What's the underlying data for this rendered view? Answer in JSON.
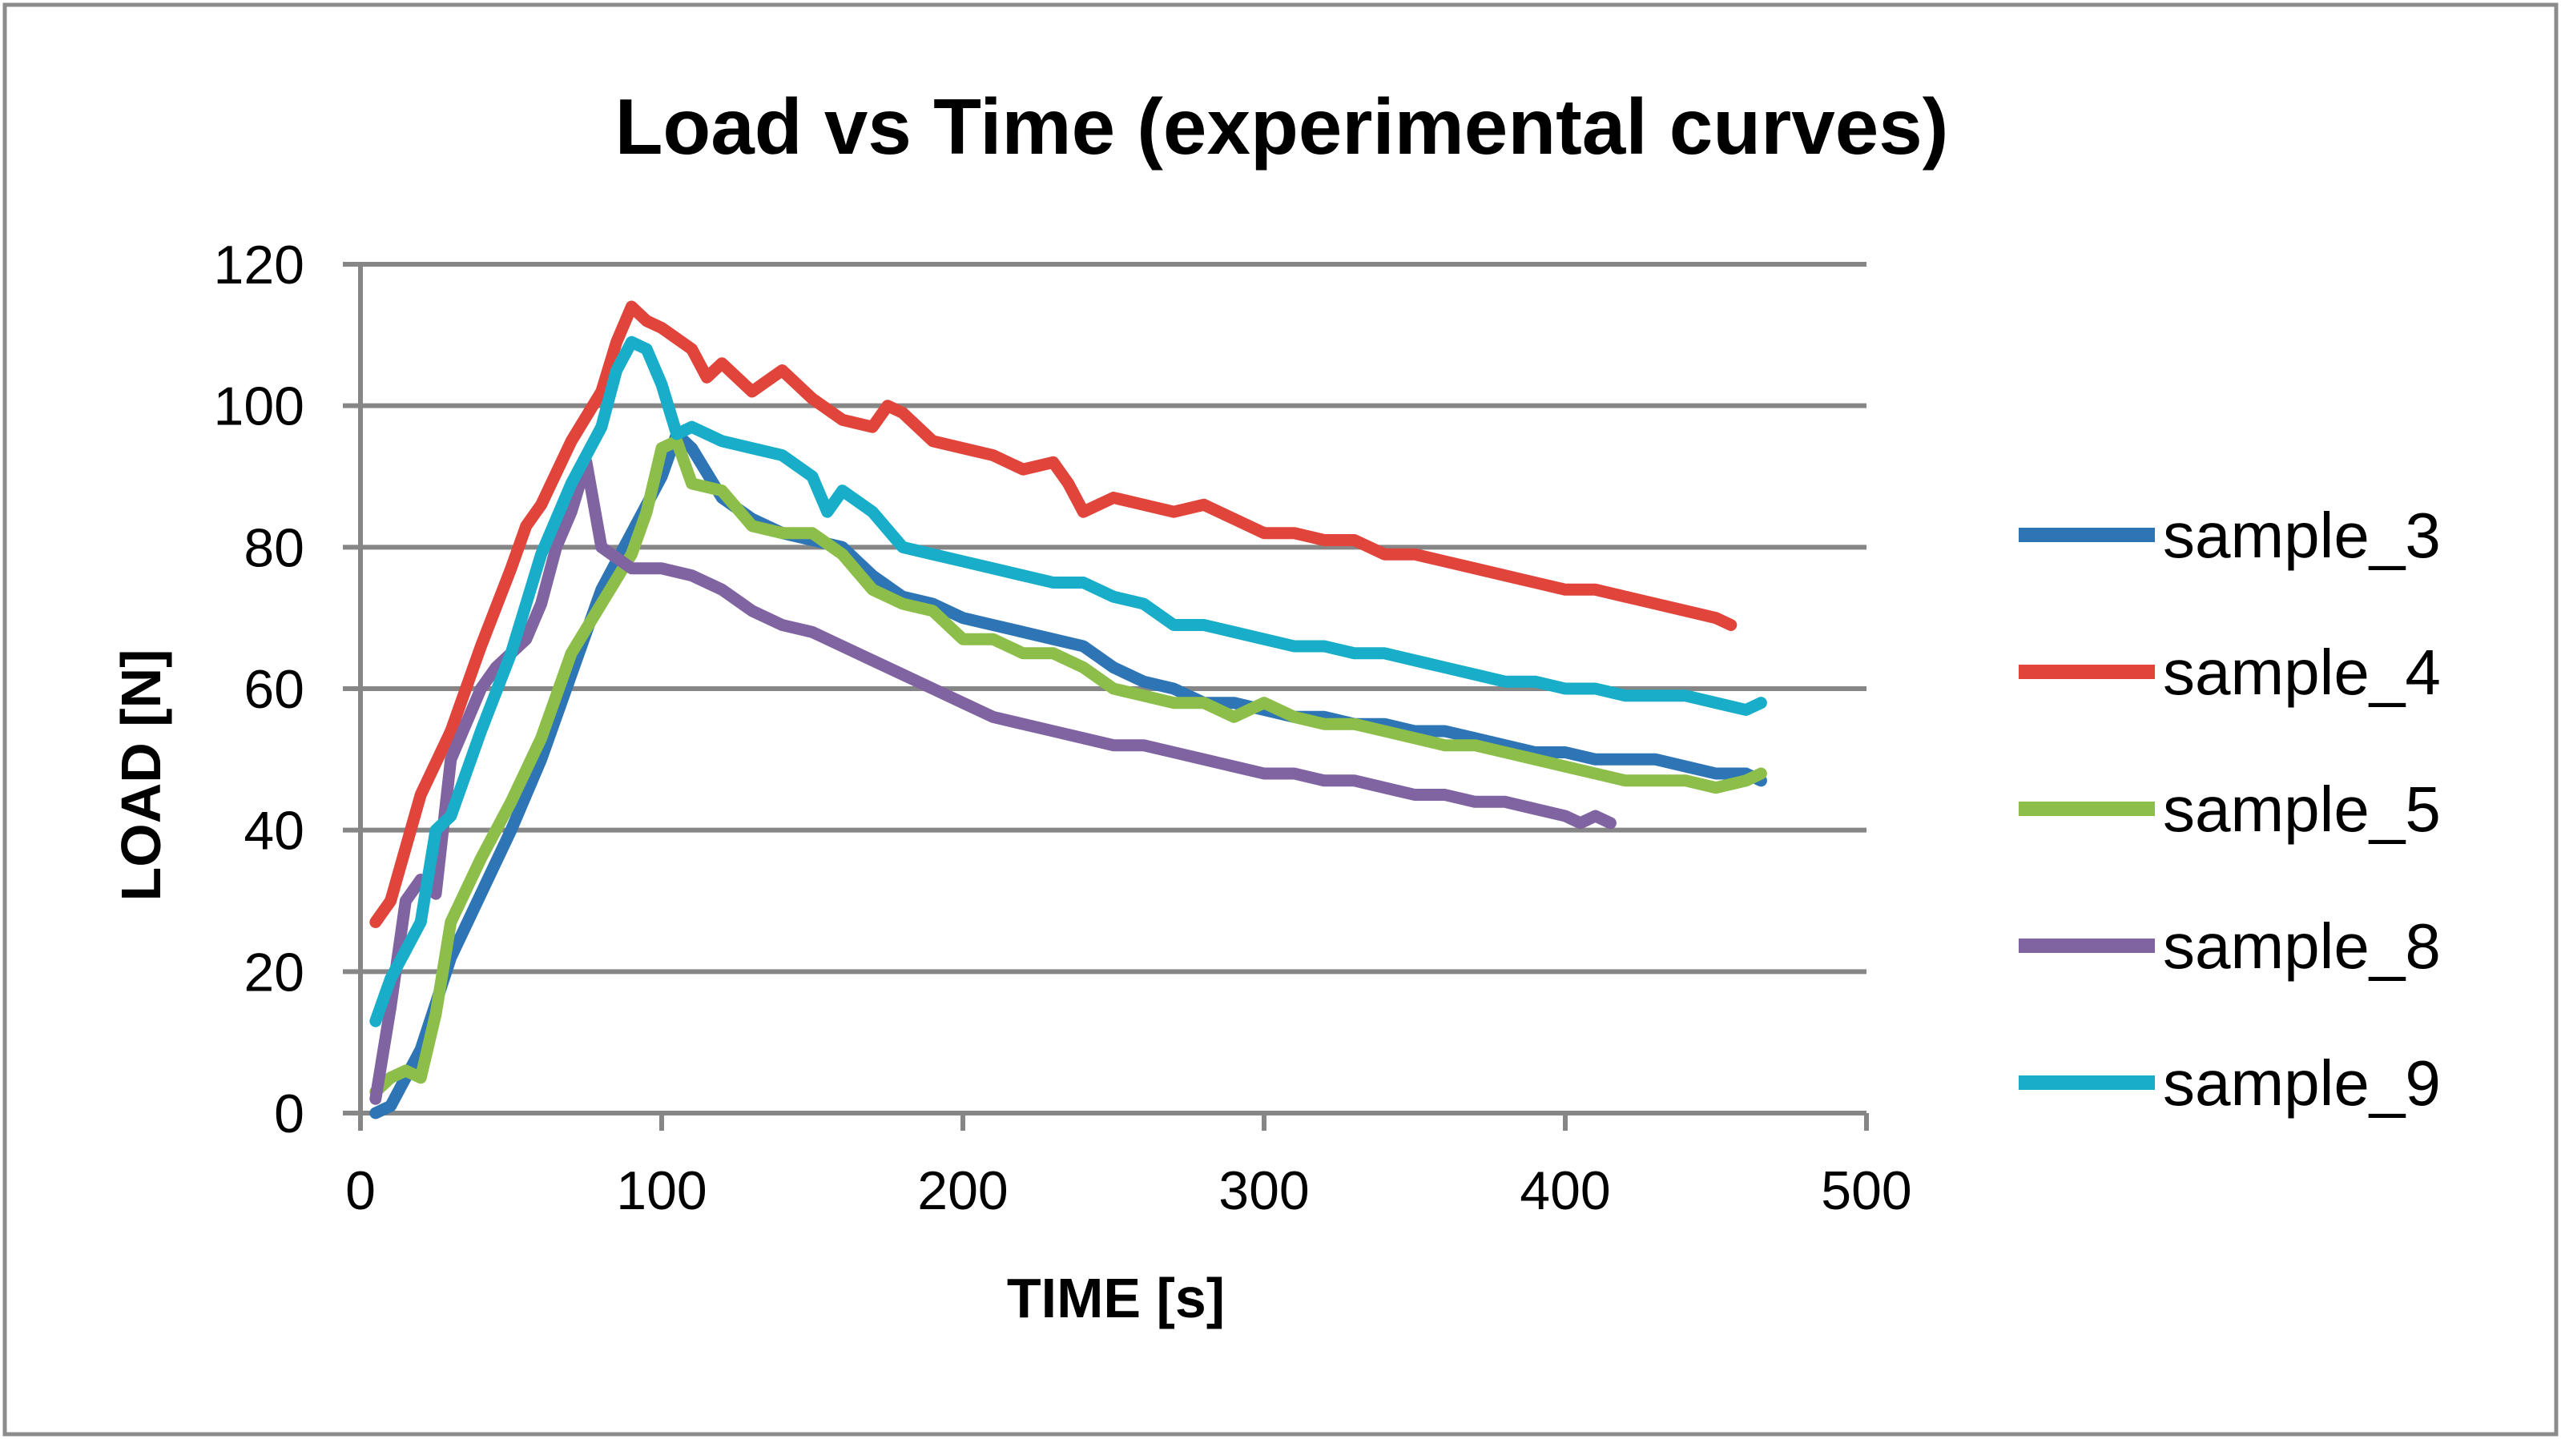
{
  "chart_data": {
    "type": "line",
    "title": "Load vs Time (experimental curves)",
    "xlabel": "TIME [s]",
    "ylabel": "LOAD [N]",
    "xlim": [
      0,
      500
    ],
    "ylim": [
      0,
      120
    ],
    "xticks": [
      "0",
      "100",
      "200",
      "300",
      "400",
      "500"
    ],
    "yticks": [
      "0",
      "20",
      "40",
      "60",
      "80",
      "100",
      "120"
    ],
    "grid": "horizontal",
    "legend_position": "right",
    "series": [
      {
        "name": "sample_3",
        "color": "#2E75B6",
        "x": [
          5,
          10,
          20,
          30,
          40,
          50,
          60,
          70,
          80,
          90,
          100,
          105,
          110,
          120,
          130,
          140,
          150,
          160,
          170,
          180,
          190,
          200,
          210,
          220,
          230,
          240,
          250,
          260,
          270,
          280,
          290,
          300,
          310,
          320,
          330,
          340,
          350,
          360,
          370,
          380,
          390,
          400,
          410,
          420,
          430,
          440,
          450,
          460,
          465
        ],
        "y": [
          0,
          1,
          9,
          22,
          31,
          40,
          50,
          62,
          74,
          82,
          90,
          96,
          94,
          87,
          84,
          82,
          81,
          80,
          76,
          73,
          72,
          70,
          69,
          68,
          67,
          66,
          63,
          61,
          60,
          58,
          58,
          57,
          56,
          56,
          55,
          55,
          54,
          54,
          53,
          52,
          51,
          51,
          50,
          50,
          50,
          49,
          48,
          48,
          47
        ]
      },
      {
        "name": "sample_4",
        "color": "#E0443A",
        "x": [
          5,
          10,
          20,
          30,
          40,
          50,
          55,
          60,
          70,
          80,
          85,
          90,
          95,
          100,
          110,
          115,
          120,
          130,
          140,
          150,
          160,
          170,
          175,
          180,
          190,
          200,
          210,
          220,
          230,
          235,
          240,
          250,
          260,
          270,
          280,
          290,
          300,
          310,
          320,
          330,
          340,
          350,
          360,
          370,
          380,
          390,
          400,
          410,
          420,
          430,
          440,
          450,
          455
        ],
        "y": [
          27,
          30,
          45,
          54,
          66,
          77,
          83,
          86,
          95,
          102,
          109,
          114,
          112,
          111,
          108,
          104,
          106,
          102,
          105,
          101,
          98,
          97,
          100,
          99,
          95,
          94,
          93,
          91,
          92,
          89,
          85,
          87,
          86,
          85,
          86,
          84,
          82,
          82,
          81,
          81,
          79,
          79,
          78,
          77,
          76,
          75,
          74,
          74,
          73,
          72,
          71,
          70,
          69
        ]
      },
      {
        "name": "sample_5",
        "color": "#8DBE4A",
        "x": [
          5,
          10,
          15,
          20,
          25,
          30,
          40,
          50,
          60,
          70,
          80,
          90,
          95,
          100,
          105,
          110,
          120,
          130,
          140,
          150,
          160,
          170,
          180,
          190,
          200,
          210,
          220,
          230,
          240,
          250,
          260,
          270,
          280,
          290,
          300,
          310,
          320,
          330,
          340,
          350,
          360,
          370,
          380,
          390,
          400,
          410,
          420,
          430,
          440,
          450,
          460,
          465
        ],
        "y": [
          3,
          5,
          6,
          5,
          14,
          27,
          36,
          44,
          53,
          65,
          72,
          79,
          85,
          94,
          95,
          89,
          88,
          83,
          82,
          82,
          79,
          74,
          72,
          71,
          67,
          67,
          65,
          65,
          63,
          60,
          59,
          58,
          58,
          56,
          58,
          56,
          55,
          55,
          54,
          53,
          52,
          52,
          51,
          50,
          49,
          48,
          47,
          47,
          47,
          46,
          47,
          48
        ]
      },
      {
        "name": "sample_8",
        "color": "#8064A2",
        "x": [
          5,
          10,
          15,
          20,
          25,
          30,
          35,
          40,
          45,
          50,
          55,
          60,
          65,
          70,
          75,
          80,
          90,
          100,
          110,
          120,
          130,
          140,
          150,
          160,
          170,
          180,
          190,
          200,
          210,
          220,
          230,
          240,
          250,
          260,
          270,
          280,
          290,
          300,
          310,
          320,
          330,
          340,
          350,
          360,
          370,
          380,
          390,
          400,
          405,
          410,
          415
        ],
        "y": [
          2,
          15,
          30,
          33,
          31,
          50,
          55,
          60,
          63,
          65,
          67,
          72,
          80,
          85,
          92,
          80,
          77,
          77,
          76,
          74,
          71,
          69,
          68,
          66,
          64,
          62,
          60,
          58,
          56,
          55,
          54,
          53,
          52,
          52,
          51,
          50,
          49,
          48,
          48,
          47,
          47,
          46,
          45,
          45,
          44,
          44,
          43,
          42,
          41,
          42,
          41
        ]
      },
      {
        "name": "sample_9",
        "color": "#18AEC9",
        "x": [
          5,
          10,
          20,
          25,
          30,
          40,
          50,
          60,
          70,
          80,
          85,
          90,
          95,
          100,
          105,
          110,
          120,
          130,
          140,
          150,
          155,
          160,
          170,
          180,
          190,
          200,
          210,
          220,
          230,
          240,
          250,
          260,
          270,
          280,
          290,
          300,
          310,
          320,
          330,
          340,
          350,
          360,
          370,
          380,
          390,
          400,
          410,
          420,
          430,
          440,
          450,
          460,
          465
        ],
        "y": [
          13,
          19,
          27,
          40,
          42,
          54,
          65,
          79,
          89,
          97,
          105,
          109,
          108,
          103,
          96,
          97,
          95,
          94,
          93,
          90,
          85,
          88,
          85,
          80,
          79,
          78,
          77,
          76,
          75,
          75,
          73,
          72,
          69,
          69,
          68,
          67,
          66,
          66,
          65,
          65,
          64,
          63,
          62,
          61,
          61,
          60,
          60,
          59,
          59,
          59,
          58,
          57,
          58
        ]
      }
    ]
  }
}
